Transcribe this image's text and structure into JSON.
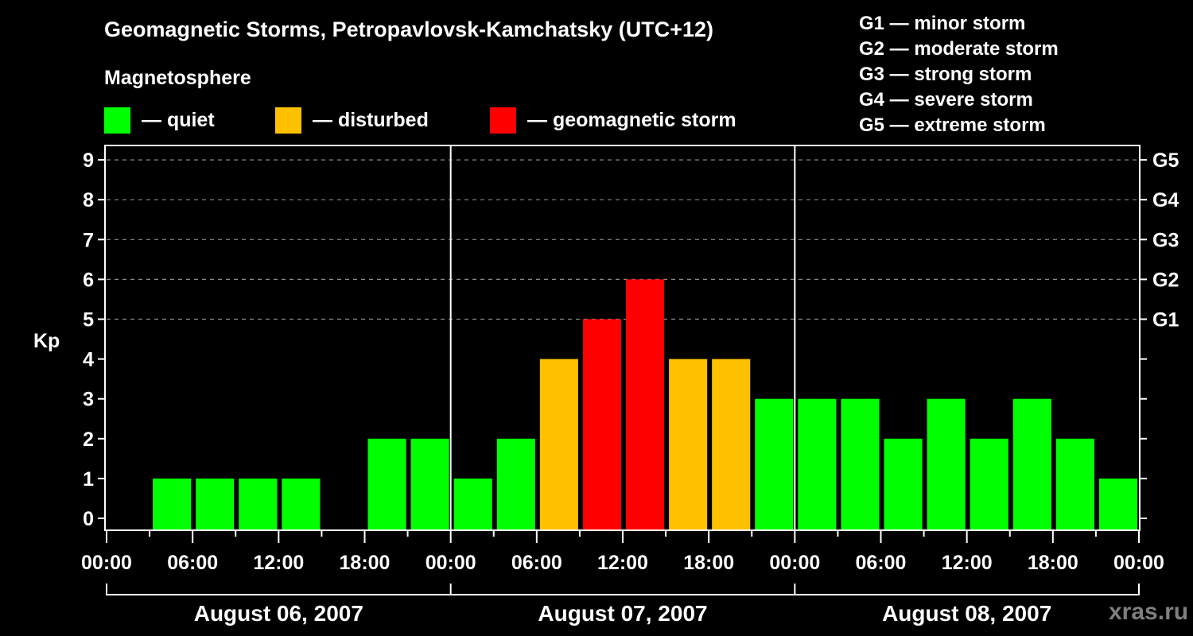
{
  "title": "Geomagnetic Storms, Petropavlovsk-Kamchatsky (UTC+12)",
  "legend": {
    "heading": "Magnetosphere",
    "items": [
      {
        "label": "— quiet",
        "color": "#00ff00"
      },
      {
        "label": "— disturbed",
        "color": "#ffc000"
      },
      {
        "label": "— geomagnetic storm",
        "color": "#ff0000"
      }
    ]
  },
  "g_scale": [
    "G1 — minor storm",
    "G2 — moderate storm",
    "G3 — strong storm",
    "G4 — severe storm",
    "G5 — extreme storm"
  ],
  "watermark": "xras.ru",
  "chart_data": {
    "type": "bar",
    "title": "Geomagnetic Storms, Petropavlovsk-Kamchatsky (UTC+12)",
    "xlabel": "",
    "ylabel": "Kp",
    "ylim": [
      0,
      9
    ],
    "yticks": [
      0,
      1,
      2,
      3,
      4,
      5,
      6,
      7,
      8,
      9
    ],
    "y2ticks": [
      {
        "kp": 5,
        "label": "G1"
      },
      {
        "kp": 6,
        "label": "G2"
      },
      {
        "kp": 7,
        "label": "G3"
      },
      {
        "kp": 8,
        "label": "G4"
      },
      {
        "kp": 9,
        "label": "G5"
      }
    ],
    "grid": "dashed horizontal lines at Kp 5-9",
    "x_tick_labels": [
      "00:00",
      "06:00",
      "12:00",
      "18:00",
      "00:00",
      "06:00",
      "12:00",
      "18:00",
      "00:00",
      "06:00",
      "12:00",
      "18:00",
      "00:00"
    ],
    "days": [
      "August 06, 2007",
      "August 07, 2007",
      "August 08, 2007"
    ],
    "categories": [
      "08-06 00:00",
      "08-06 03:00",
      "08-06 06:00",
      "08-06 09:00",
      "08-06 12:00",
      "08-06 15:00",
      "08-06 18:00",
      "08-06 21:00",
      "08-07 00:00",
      "08-07 03:00",
      "08-07 06:00",
      "08-07 09:00",
      "08-07 12:00",
      "08-07 15:00",
      "08-07 18:00",
      "08-07 21:00",
      "08-08 00:00",
      "08-08 03:00",
      "08-08 06:00",
      "08-08 09:00",
      "08-08 12:00",
      "08-08 15:00",
      "08-08 18:00",
      "08-08 21:00"
    ],
    "values": [
      null,
      1,
      1,
      1,
      1,
      null,
      2,
      2,
      1,
      2,
      4,
      5,
      6,
      4,
      4,
      3,
      3,
      3,
      2,
      3,
      2,
      3,
      2,
      1
    ],
    "status": [
      "",
      "quiet",
      "quiet",
      "quiet",
      "quiet",
      "",
      "quiet",
      "quiet",
      "quiet",
      "quiet",
      "disturbed",
      "storm",
      "storm",
      "disturbed",
      "disturbed",
      "quiet",
      "quiet",
      "quiet",
      "quiet",
      "quiet",
      "quiet",
      "quiet",
      "quiet",
      "quiet"
    ],
    "colors": {
      "quiet": "#00ff00",
      "disturbed": "#ffc000",
      "storm": "#ff0000"
    }
  }
}
